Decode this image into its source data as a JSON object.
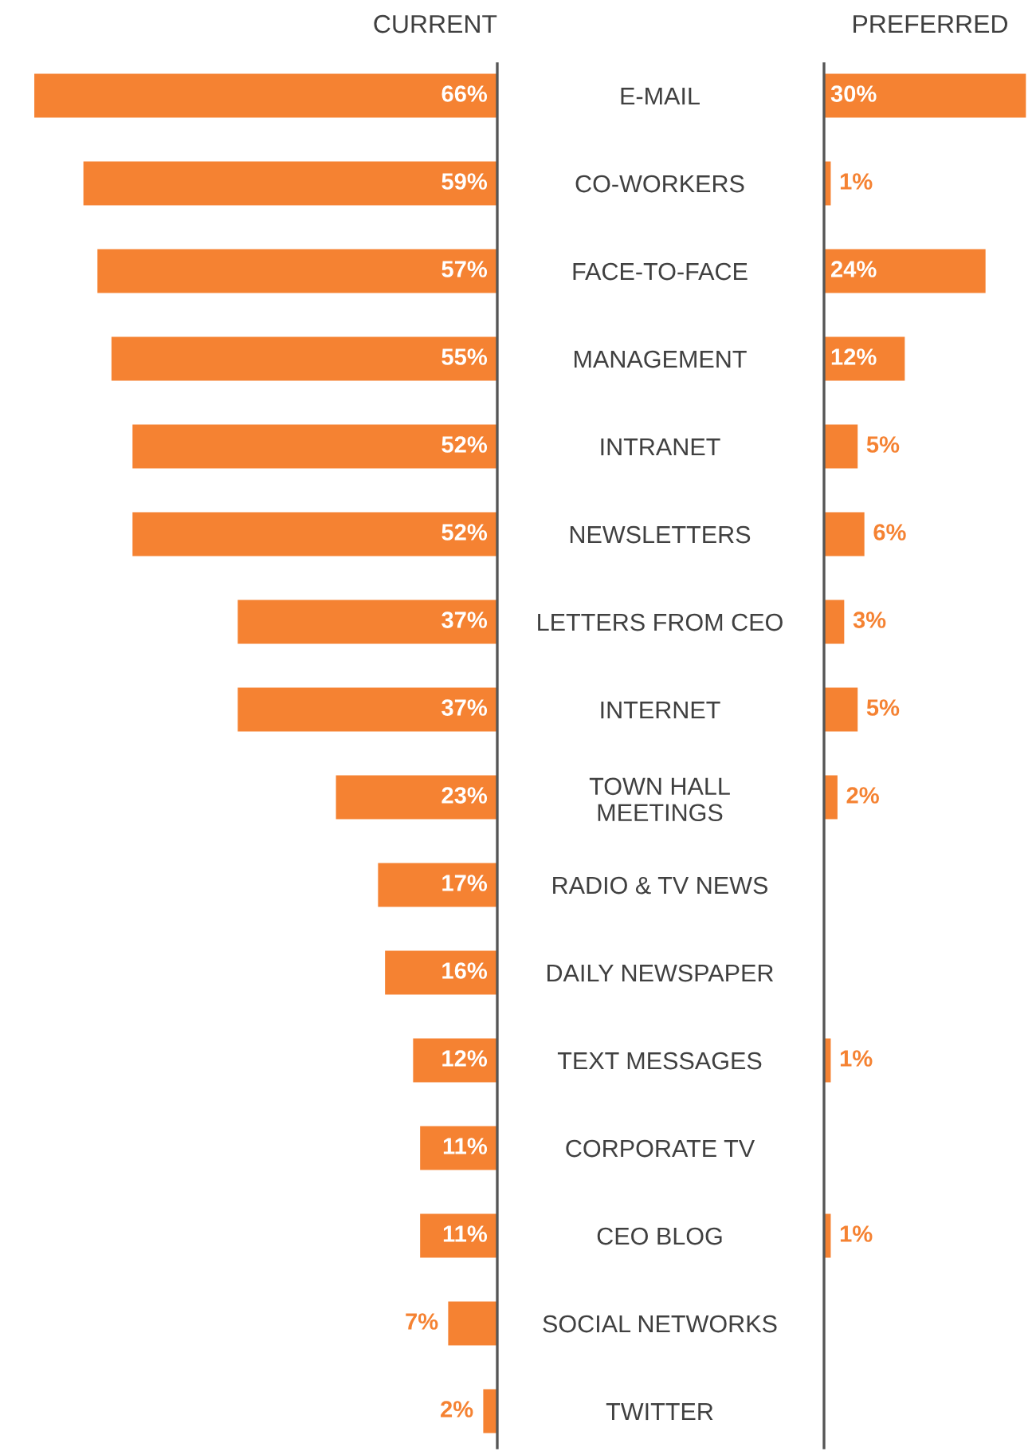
{
  "chart_data": [
    {
      "type": "bar",
      "orientation": "horizontal",
      "title": "CURRENT",
      "categories": [
        "E-MAIL",
        "CO-WORKERS",
        "FACE-TO-FACE",
        "MANAGEMENT",
        "INTRANET",
        "NEWSLETTERS",
        "LETTERS FROM CEO",
        "INTERNET",
        "TOWN HALL\nMEETINGS",
        "RADIO & TV NEWS",
        "DAILY NEWSPAPER",
        "TEXT MESSAGES",
        "CORPORATE TV",
        "CEO BLOG",
        "SOCIAL NETWORKS",
        "TWITTER"
      ],
      "values": [
        66,
        59,
        57,
        55,
        52,
        52,
        37,
        37,
        23,
        17,
        16,
        12,
        11,
        11,
        7,
        2
      ],
      "color": "#f58232",
      "value_labels": [
        "66%",
        "59%",
        "57%",
        "55%",
        "52%",
        "52%",
        "37%",
        "37%",
        "23%",
        "17%",
        "16%",
        "12%",
        "11%",
        "11%",
        "7%",
        "2%"
      ],
      "tick_labels": "y"
    },
    {
      "type": "bar",
      "orientation": "horizontal",
      "title": "PREFERRED",
      "values": [
        30,
        1,
        24,
        12,
        5,
        6,
        3,
        5,
        2,
        null,
        null,
        1,
        null,
        1,
        null,
        null
      ],
      "color": "#f58232",
      "value_labels": [
        "30%",
        "1%",
        "24%",
        "12%",
        "5%",
        "6%",
        "3%",
        "5%",
        "2%",
        null,
        null,
        "1%",
        null,
        "1%",
        null,
        null
      ],
      "tick_labels": false
    }
  ]
}
